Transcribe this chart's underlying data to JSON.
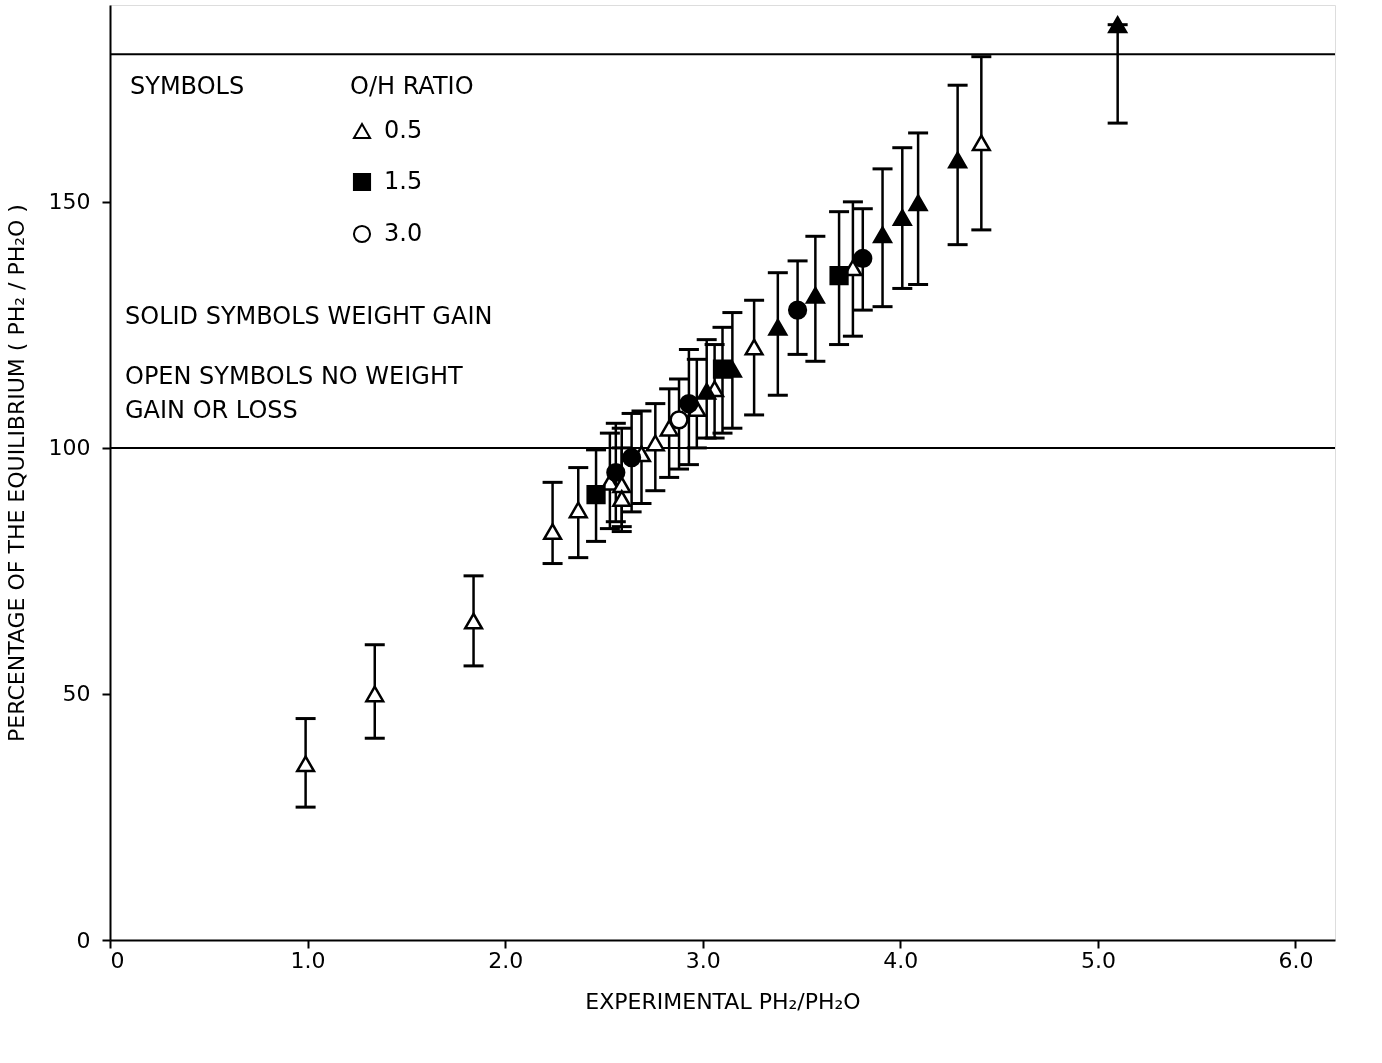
{
  "chart_data": {
    "type": "scatter",
    "xlabel": "EXPERIMENTAL PH₂/PH₂O",
    "ylabel": "PERCENTAGE OF THE EQUILIBRIUM ( PH₂ / PH₂O )",
    "legend_title": "O/H RATIO",
    "legend": "top left",
    "grid": false,
    "xlim": [
      0,
      6.2
    ],
    "ylim": [
      0,
      190
    ],
    "xticks": [
      0,
      {
        "value": 1,
        "label": "1.0"
      },
      {
        "value": 2,
        "label": "2.0"
      },
      {
        "value": 3,
        "label": "3.0"
      },
      {
        "value": 4,
        "label": "4.0"
      },
      {
        "value": 5,
        "label": "5.0"
      },
      {
        "value": 6,
        "label": "6.0"
      }
    ],
    "yticks": [
      0,
      50,
      100,
      150
    ],
    "ref_lines": [
      {
        "axis": "y",
        "value": 100,
        "color": "#000000"
      },
      {
        "axis": "y",
        "value": 180,
        "color": "#000000"
      }
    ],
    "annotations": [
      "SYMBOLS",
      "SOLID SYMBOLS WEIGHT GAIN",
      "OPEN SYMBOLS NO WEIGHT\nGAIN OR LOSS"
    ],
    "series": [
      {
        "name": "0.5",
        "color": "#ffffff",
        "marker": "triangle",
        "x": [
          0.99,
          1.34,
          1.84,
          2.24,
          2.37,
          2.53,
          2.59,
          2.59,
          2.69,
          2.76,
          2.83,
          2.97,
          3.06,
          3.26,
          3.76,
          4.41
        ],
        "values": [
          35.8,
          50,
          64.8,
          83,
          87.4,
          93,
          92.5,
          89.7,
          98.8,
          101,
          104,
          108,
          112,
          120.5,
          136.6,
          162
        ],
        "errors": [
          [
            27,
            45
          ],
          [
            41,
            60
          ],
          [
            55.7,
            74
          ],
          [
            76.5,
            93
          ],
          [
            77.7,
            96
          ],
          [
            83.6,
            103
          ],
          [
            84,
            104
          ],
          [
            83,
            100
          ],
          [
            88.7,
            107.5
          ],
          [
            91.3,
            109
          ],
          [
            94,
            112
          ],
          [
            100,
            118
          ],
          [
            102,
            121
          ],
          [
            106.7,
            130
          ],
          [
            122.7,
            150
          ],
          [
            144.3,
            179.5
          ]
        ]
      },
      {
        "color": "#000000",
        "marker": "triangle",
        "x": [
          3.02,
          3.15,
          3.38,
          3.57,
          3.91,
          4.01,
          4.09,
          4.29,
          5.1
        ],
        "values": [
          111.5,
          116,
          124.5,
          131,
          143.3,
          146.8,
          149.8,
          158.5,
          186
        ],
        "errors": [
          [
            102,
            122
          ],
          [
            104,
            127.5
          ],
          [
            110.7,
            135.6
          ],
          [
            117.6,
            143
          ],
          [
            128.7,
            156.7
          ],
          [
            132.4,
            161
          ],
          [
            133.2,
            164
          ],
          [
            141.3,
            173.7
          ],
          [
            166,
            186
          ]
        ]
      },
      {
        "name": "1.5",
        "color": "#000000",
        "marker": "square",
        "x": [
          2.46,
          3.1,
          3.69
        ],
        "values": [
          90.5,
          116,
          135
        ],
        "errors": [
          [
            81,
            99.6
          ],
          [
            103,
            124.5
          ],
          [
            121,
            148
          ]
        ]
      },
      {
        "name": "3.0",
        "color": "#ffffff",
        "marker": "circle",
        "x": [
          2.88
        ],
        "values": [
          105.7
        ],
        "errors": [
          [
            95.7,
            114
          ]
        ]
      },
      {
        "color": "#000000",
        "marker": "circle",
        "x": [
          2.56,
          2.64,
          2.93,
          3.48,
          3.81
        ],
        "values": [
          95,
          98,
          109,
          128,
          138.5
        ],
        "errors": [
          [
            85,
            105
          ],
          [
            87,
            107
          ],
          [
            96.6,
            120
          ],
          [
            119,
            138
          ],
          [
            128,
            148.6
          ]
        ]
      }
    ]
  }
}
